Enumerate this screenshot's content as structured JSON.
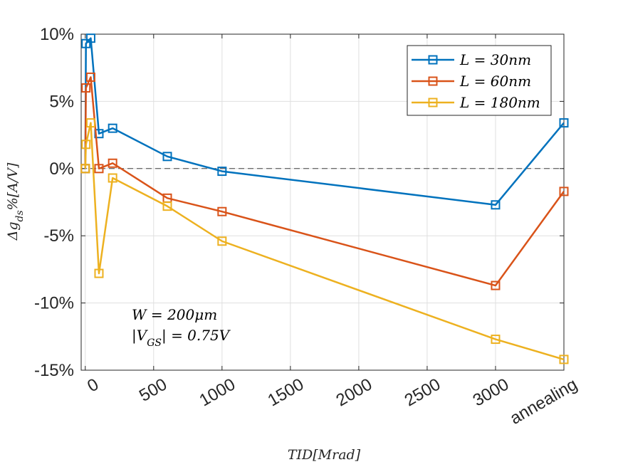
{
  "chart_data": {
    "type": "line",
    "xlabel": "TID[Mrad]",
    "ylabel": "Δg_ds%[A/V]",
    "xlim": [
      -30,
      3500
    ],
    "ylim": [
      -15,
      10
    ],
    "x_ticks": [
      {
        "value": 0,
        "label": "0"
      },
      {
        "value": 500,
        "label": "500"
      },
      {
        "value": 1000,
        "label": "1000"
      },
      {
        "value": 1500,
        "label": "1500"
      },
      {
        "value": 2000,
        "label": "2000"
      },
      {
        "value": 2500,
        "label": "2500"
      },
      {
        "value": 3000,
        "label": "3000"
      },
      {
        "value": 3500,
        "label": "annealing"
      }
    ],
    "y_ticks": [
      {
        "value": 10,
        "label": "10%"
      },
      {
        "value": 5,
        "label": "5%"
      },
      {
        "value": 0,
        "label": "0%"
      },
      {
        "value": -5,
        "label": "-5%"
      },
      {
        "value": -10,
        "label": "-10%"
      },
      {
        "value": -15,
        "label": "-15%"
      }
    ],
    "grid": true,
    "zero_reference_line": true,
    "legend_position": "top-right",
    "series": [
      {
        "name": "L = 30nm",
        "color": "#0072BD",
        "x": [
          0,
          5,
          40,
          100,
          200,
          600,
          1000,
          3000,
          3500
        ],
        "y": [
          0,
          9.3,
          9.7,
          2.6,
          3.0,
          0.9,
          -0.2,
          -2.7,
          3.4
        ]
      },
      {
        "name": "L = 60nm",
        "color": "#D95319",
        "x": [
          0,
          5,
          40,
          100,
          200,
          600,
          1000,
          3000,
          3500
        ],
        "y": [
          0,
          6.0,
          6.8,
          0.0,
          0.4,
          -2.2,
          -3.2,
          -8.7,
          -1.7
        ]
      },
      {
        "name": "L = 180nm",
        "color": "#EDB120",
        "x": [
          0,
          5,
          40,
          100,
          200,
          600,
          1000,
          3000,
          3500
        ],
        "y": [
          0,
          1.8,
          3.4,
          -7.8,
          -0.7,
          -2.8,
          -5.4,
          -12.7,
          -14.2
        ]
      }
    ],
    "annotations": [
      "W = 200μm",
      "|V_GS| = 0.75V"
    ]
  }
}
